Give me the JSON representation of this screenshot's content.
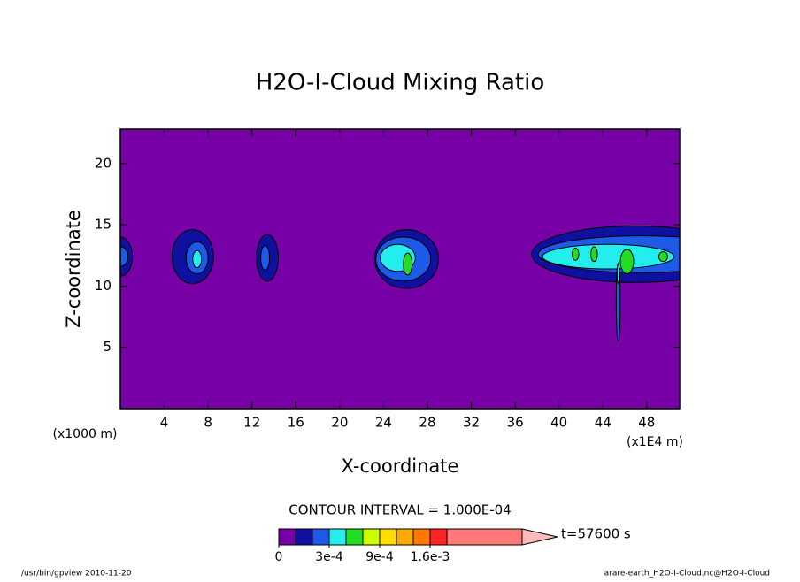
{
  "chart_data": {
    "type": "contour",
    "title": "H2O-I-Cloud Mixing Ratio",
    "x_label": "X-coordinate",
    "y_label": "Z-coordinate",
    "x_unit_left": "(x1000 m)",
    "x_unit_right": "(x1E4 m)",
    "xlim": [
      0,
      51
    ],
    "ylim": [
      0,
      22.8
    ],
    "xticks": [
      4,
      8,
      12,
      16,
      20,
      24,
      28,
      32,
      36,
      40,
      44,
      48
    ],
    "yticks": [
      5,
      10,
      15,
      20
    ],
    "regions": [
      {
        "level": 1,
        "x": 0,
        "z": 12.4,
        "rx": 1.1,
        "rz": 1.6
      },
      {
        "level": 2,
        "x": 0,
        "z": 12.4,
        "rx": 0.7,
        "rz": 0.8
      },
      {
        "level": 1,
        "x": 6.6,
        "z": 12.4,
        "rx": 1.9,
        "rz": 2.2
      },
      {
        "level": 2,
        "x": 7,
        "z": 12.3,
        "rx": 1.0,
        "rz": 1.3
      },
      {
        "level": 3,
        "x": 7,
        "z": 12.2,
        "rx": 0.4,
        "rz": 0.7
      },
      {
        "level": 1,
        "x": 13.4,
        "z": 12.3,
        "rx": 1.0,
        "rz": 1.9
      },
      {
        "level": 2,
        "x": 13.2,
        "z": 12.3,
        "rx": 0.4,
        "rz": 1.0
      },
      {
        "level": 1,
        "x": 26.1,
        "z": 12.2,
        "rx": 2.9,
        "rz": 2.4
      },
      {
        "level": 2,
        "x": 25.8,
        "z": 12.2,
        "rx": 2.5,
        "rz": 1.8
      },
      {
        "level": 3,
        "x": 25.3,
        "z": 12.3,
        "rx": 1.6,
        "rz": 1.1
      },
      {
        "level": 4,
        "x": 26.2,
        "z": 11.8,
        "rx": 0.4,
        "rz": 0.9
      },
      {
        "level": 1,
        "x": 47,
        "z": 12.6,
        "rx": 9.5,
        "rz": 2.3
      },
      {
        "level": 2,
        "x": 47.5,
        "z": 12.6,
        "rx": 9.4,
        "rz": 1.5
      },
      {
        "level": 3,
        "x": 44.5,
        "z": 12.4,
        "rx": 6.0,
        "rz": 1.0
      },
      {
        "level": 4,
        "x": 41.5,
        "z": 12.6,
        "rx": 0.3,
        "rz": 0.5
      },
      {
        "level": 4,
        "x": 43.2,
        "z": 12.6,
        "rx": 0.3,
        "rz": 0.6
      },
      {
        "level": 4,
        "x": 46.2,
        "z": 12.0,
        "rx": 0.6,
        "rz": 1.0
      },
      {
        "level": 4,
        "x": 49.5,
        "z": 12.4,
        "rx": 0.4,
        "rz": 0.4
      },
      {
        "level": 2,
        "x": 45.4,
        "z": 8.7,
        "rx": 0.18,
        "rz": 3.2
      },
      {
        "level": 3,
        "x": 45.4,
        "z": 11.0,
        "rx": 0.1,
        "rz": 0.8
      }
    ],
    "colorbar": {
      "title": "CONTOUR INTERVAL = 1.000E-04",
      "colors": [
        "#7700a6",
        "#1010a0",
        "#1e5ae8",
        "#22eeee",
        "#22dd22",
        "#ccff00",
        "#ffdd00",
        "#ffaa00",
        "#ff7700",
        "#ff2222"
      ],
      "extend_colors": [
        "#ff7777",
        "#ffbbbb"
      ],
      "boundaries": [
        0,
        0.0001,
        0.0002,
        0.0003,
        0.0005,
        0.0007,
        0.0009,
        0.0011,
        0.0013,
        0.0016,
        0.0018
      ],
      "ticks": [
        0,
        {
          "value": 0.0003,
          "label": "3e-4"
        },
        {
          "value": 0.0009,
          "label": "9e-4"
        },
        {
          "value": 0.0016,
          "label": "1.6e-3"
        }
      ]
    },
    "time_label": "t=57600 s",
    "footer_left": "/usr/bin/gpview  2010-11-20",
    "footer_right": "arare-earth_H2O-I-Cloud.nc@H2O-I-Cloud"
  }
}
